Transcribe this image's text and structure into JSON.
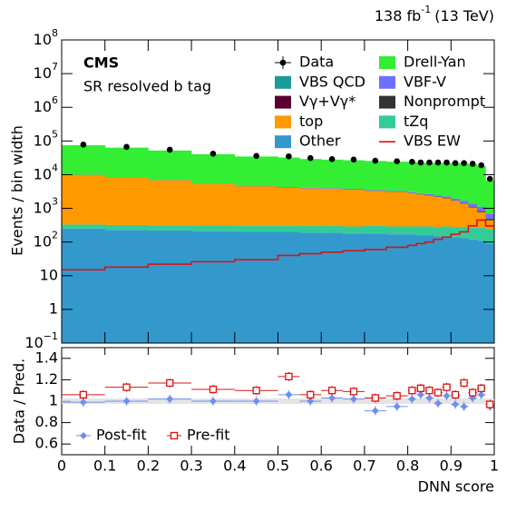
{
  "chart_data": {
    "type": "stacked_histogram",
    "lumi": {
      "text": "138 fb",
      "power": "-1",
      "suffix": "(13 TeV)"
    },
    "experiment": "CMS",
    "region": "SR resolved b tag",
    "y_label": "Events / bin width",
    "x_label": "DNN score",
    "log_y": true,
    "bins": [
      0,
      0.1,
      0.2,
      0.3,
      0.4,
      0.5,
      0.55,
      0.6,
      0.65,
      0.7,
      0.75,
      0.8,
      0.82,
      0.84,
      0.86,
      0.88,
      0.9,
      0.92,
      0.94,
      0.96,
      0.98,
      1.0
    ],
    "xlim": [
      0,
      1
    ],
    "xticks": [
      0,
      0.1,
      0.2,
      0.3,
      0.4,
      0.5,
      0.6,
      0.7,
      0.8,
      0.9,
      1
    ],
    "ylim": [
      0.1,
      100000000
    ],
    "yticks": [
      {
        "value": 0.1,
        "label": "10",
        "power": "−1"
      },
      1,
      10,
      {
        "value": 100,
        "label": "10",
        "power": "2"
      },
      {
        "value": 1000,
        "label": "10",
        "power": "3"
      },
      {
        "value": 10000,
        "label": "10",
        "power": "4"
      },
      {
        "value": 100000,
        "label": "10",
        "power": "5"
      },
      {
        "value": 1000000,
        "label": "10",
        "power": "6"
      },
      {
        "value": 10000000,
        "label": "10",
        "power": "7"
      },
      {
        "value": 100000000,
        "label": "10",
        "power": "8"
      }
    ],
    "data": {
      "name": "Data",
      "color": "#000000",
      "values": [
        78000,
        67000,
        55000,
        42000,
        36000,
        35000,
        31000,
        29000,
        28000,
        26000,
        25000,
        24000,
        23000,
        23000,
        23000,
        23000,
        22000,
        22000,
        21000,
        19000,
        7500
      ]
    },
    "series": [
      {
        "name": "Drell-Yan",
        "color": "#33ee33",
        "values": [
          65000,
          55000,
          45000,
          35000,
          30000,
          28000,
          25000,
          24000,
          23000,
          22000,
          21000,
          21000,
          20000,
          20000,
          20000,
          20000,
          20000,
          20000,
          19000,
          17000,
          6000
        ]
      },
      {
        "name": "VBS QCD",
        "color": "#1a9a9a",
        "values": [
          20,
          20,
          20,
          20,
          20,
          20,
          20,
          20,
          20,
          20,
          20,
          20,
          20,
          20,
          20,
          20,
          20,
          20,
          20,
          20,
          15
        ]
      },
      {
        "name": "VBF-V",
        "color": "#6f6fff",
        "values": [
          50,
          60,
          70,
          80,
          90,
          100,
          110,
          120,
          130,
          140,
          150,
          160,
          170,
          180,
          190,
          200,
          210,
          230,
          250,
          270,
          200
        ]
      },
      {
        "name": "Vγ+Vγ*",
        "color": "#5a0030",
        "values": [
          10,
          10,
          10,
          10,
          10,
          10,
          10,
          10,
          10,
          10,
          10,
          10,
          10,
          10,
          10,
          10,
          10,
          10,
          10,
          10,
          8
        ]
      },
      {
        "name": "Nonprompt",
        "color": "#333333",
        "values": [
          100,
          90,
          80,
          70,
          60,
          60,
          60,
          60,
          60,
          50,
          50,
          50,
          50,
          50,
          50,
          50,
          50,
          50,
          50,
          50,
          40
        ]
      },
      {
        "name": "top",
        "color": "#ff9900",
        "values": [
          9500,
          8000,
          6500,
          5000,
          4200,
          3800,
          3600,
          3500,
          3300,
          3000,
          2800,
          2500,
          2300,
          2100,
          1900,
          1700,
          1400,
          1100,
          800,
          500,
          200
        ]
      },
      {
        "name": "tZq",
        "color": "#33cc99",
        "values": [
          80,
          90,
          90,
          100,
          100,
          100,
          110,
          110,
          110,
          120,
          120,
          120,
          130,
          130,
          130,
          140,
          140,
          150,
          150,
          160,
          150
        ]
      },
      {
        "name": "Other",
        "color": "#3399cc",
        "values": [
          250,
          230,
          220,
          210,
          200,
          200,
          190,
          190,
          180,
          180,
          170,
          170,
          160,
          160,
          150,
          150,
          140,
          130,
          120,
          110,
          90
        ]
      }
    ],
    "signal": {
      "name": "VBS EW",
      "color": "#dd1111",
      "values": [
        15,
        18,
        22,
        26,
        30,
        40,
        45,
        50,
        55,
        60,
        70,
        80,
        90,
        100,
        120,
        140,
        170,
        200,
        300,
        450,
        300
      ]
    },
    "ratio": {
      "y_label": "Data / Pred.",
      "ylim": [
        0.5,
        1.5
      ],
      "yticks": [
        0.6,
        0.8,
        1,
        1.2,
        1.4
      ],
      "series": [
        {
          "name": "Post-fit",
          "color": "#6f8fee",
          "values": [
            0.99,
            1.0,
            1.02,
            1.0,
            1.0,
            1.06,
            1.0,
            1.03,
            1.02,
            0.91,
            0.95,
            1.02,
            1.06,
            1.03,
            0.98,
            1.05,
            0.97,
            0.95,
            1.03,
            1.06,
            0.95
          ]
        },
        {
          "name": "Pre-fit",
          "color": "#dd1111",
          "values": [
            1.06,
            1.13,
            1.17,
            1.11,
            1.1,
            1.23,
            1.06,
            1.1,
            1.09,
            1.03,
            1.05,
            1.1,
            1.12,
            1.1,
            1.08,
            1.13,
            1.06,
            1.17,
            1.08,
            1.12,
            0.97
          ]
        }
      ]
    }
  }
}
